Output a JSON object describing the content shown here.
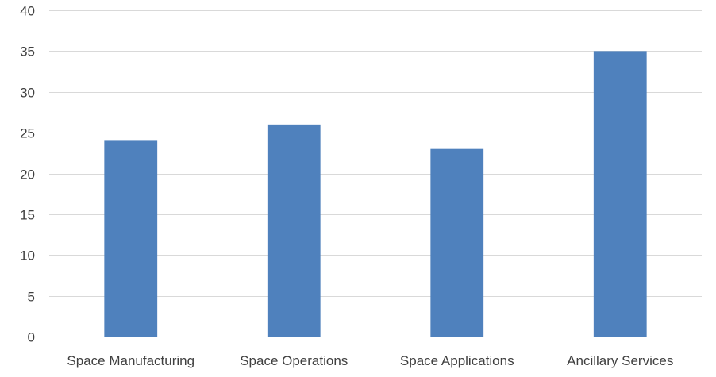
{
  "chart_data": {
    "type": "bar",
    "title": "",
    "xlabel": "",
    "ylabel": "",
    "categories": [
      "Space Manufacturing",
      "Space Operations",
      "Space Applications",
      "Ancillary Services"
    ],
    "values": [
      24,
      26,
      23,
      35
    ],
    "ylim": [
      0,
      40
    ],
    "yticks": [
      0,
      5,
      10,
      15,
      20,
      25,
      30,
      35,
      40
    ],
    "grid": true,
    "legend": "none",
    "bar_color": "#4F81BD",
    "grid_color": "#D9D9D9",
    "text_color": "#404040"
  }
}
